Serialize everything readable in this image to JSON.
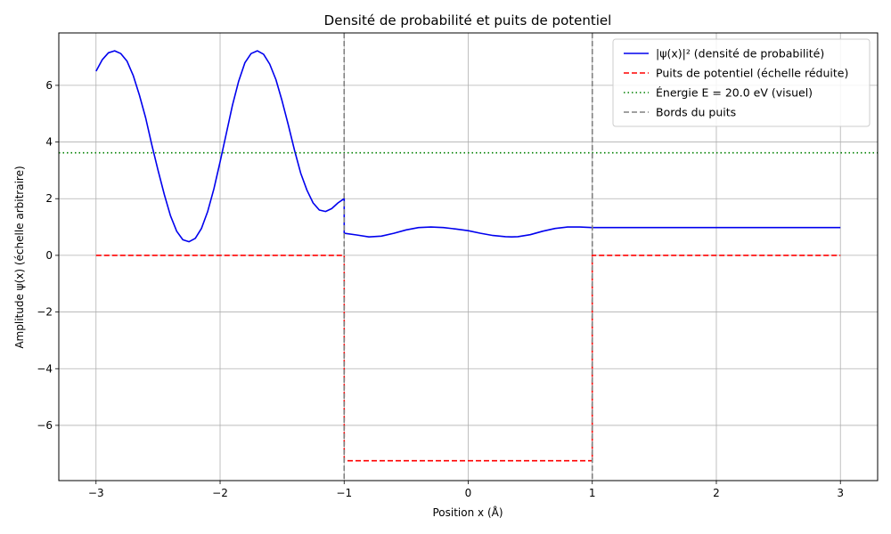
{
  "chart_data": {
    "type": "line",
    "title": "Densité de probabilité et puits de potentiel",
    "xlabel": "Position x (Å)",
    "ylabel": "Amplitude ψ(x) (échelle arbitraire)",
    "xlim": [
      -3.3,
      3.3
    ],
    "ylim": [
      -7.95,
      7.85
    ],
    "xticks": [
      -3,
      -2,
      -1,
      0,
      1,
      2,
      3
    ],
    "xtick_labels": [
      "−3",
      "−2",
      "−1",
      "0",
      "1",
      "2",
      "3"
    ],
    "yticks": [
      -6,
      -4,
      -2,
      0,
      2,
      4,
      6
    ],
    "ytick_labels": [
      "−6",
      "−4",
      "−2",
      "0",
      "2",
      "4",
      "6"
    ],
    "grid": true,
    "legend_position": "top-right",
    "series": [
      {
        "name": "|ψ(x)|² (densité de probabilité)",
        "color": "#0000ee",
        "style": "solid",
        "x": [
          -3.0,
          -2.95,
          -2.9,
          -2.85,
          -2.8,
          -2.75,
          -2.7,
          -2.65,
          -2.6,
          -2.55,
          -2.5,
          -2.45,
          -2.4,
          -2.35,
          -2.3,
          -2.25,
          -2.2,
          -2.15,
          -2.1,
          -2.05,
          -2.0,
          -1.95,
          -1.9,
          -1.85,
          -1.8,
          -1.75,
          -1.7,
          -1.65,
          -1.6,
          -1.55,
          -1.5,
          -1.45,
          -1.4,
          -1.35,
          -1.3,
          -1.25,
          -1.2,
          -1.15,
          -1.1,
          -1.05,
          -1.0,
          -1.0,
          -0.9,
          -0.8,
          -0.7,
          -0.6,
          -0.5,
          -0.4,
          -0.3,
          -0.2,
          -0.1,
          0.0,
          0.1,
          0.2,
          0.3,
          0.35,
          0.4,
          0.5,
          0.6,
          0.7,
          0.8,
          0.9,
          1.0,
          1.0,
          1.5,
          2.0,
          2.5,
          3.0
        ],
        "y": [
          6.5,
          6.9,
          7.15,
          7.22,
          7.12,
          6.85,
          6.35,
          5.65,
          4.85,
          3.9,
          3.0,
          2.15,
          1.4,
          0.85,
          0.55,
          0.48,
          0.6,
          0.95,
          1.55,
          2.35,
          3.3,
          4.3,
          5.3,
          6.15,
          6.8,
          7.12,
          7.22,
          7.1,
          6.75,
          6.2,
          5.45,
          4.6,
          3.7,
          2.9,
          2.3,
          1.85,
          1.6,
          1.55,
          1.65,
          1.85,
          2.0,
          0.78,
          0.72,
          0.65,
          0.68,
          0.78,
          0.9,
          0.98,
          1.0,
          0.98,
          0.93,
          0.87,
          0.78,
          0.7,
          0.66,
          0.65,
          0.66,
          0.73,
          0.85,
          0.95,
          1.0,
          1.0,
          0.98,
          0.98,
          0.98,
          0.98,
          0.98,
          0.98
        ]
      },
      {
        "name": "Puits de potentiel (échelle réduite)",
        "color": "#ff0000",
        "style": "dashed",
        "x": [
          -3.0,
          -1.0,
          -1.0,
          1.0,
          1.0,
          3.0
        ],
        "y": [
          0.0,
          0.0,
          -7.25,
          -7.25,
          0.0,
          0.0
        ]
      },
      {
        "name": "Énergie E = 20.0 eV (visuel)",
        "color": "#008000",
        "style": "dotted",
        "hline": 3.62
      },
      {
        "name": "Bords du puits",
        "color": "#808080",
        "style": "dashed",
        "vlines": [
          -1.0,
          1.0
        ]
      }
    ]
  }
}
